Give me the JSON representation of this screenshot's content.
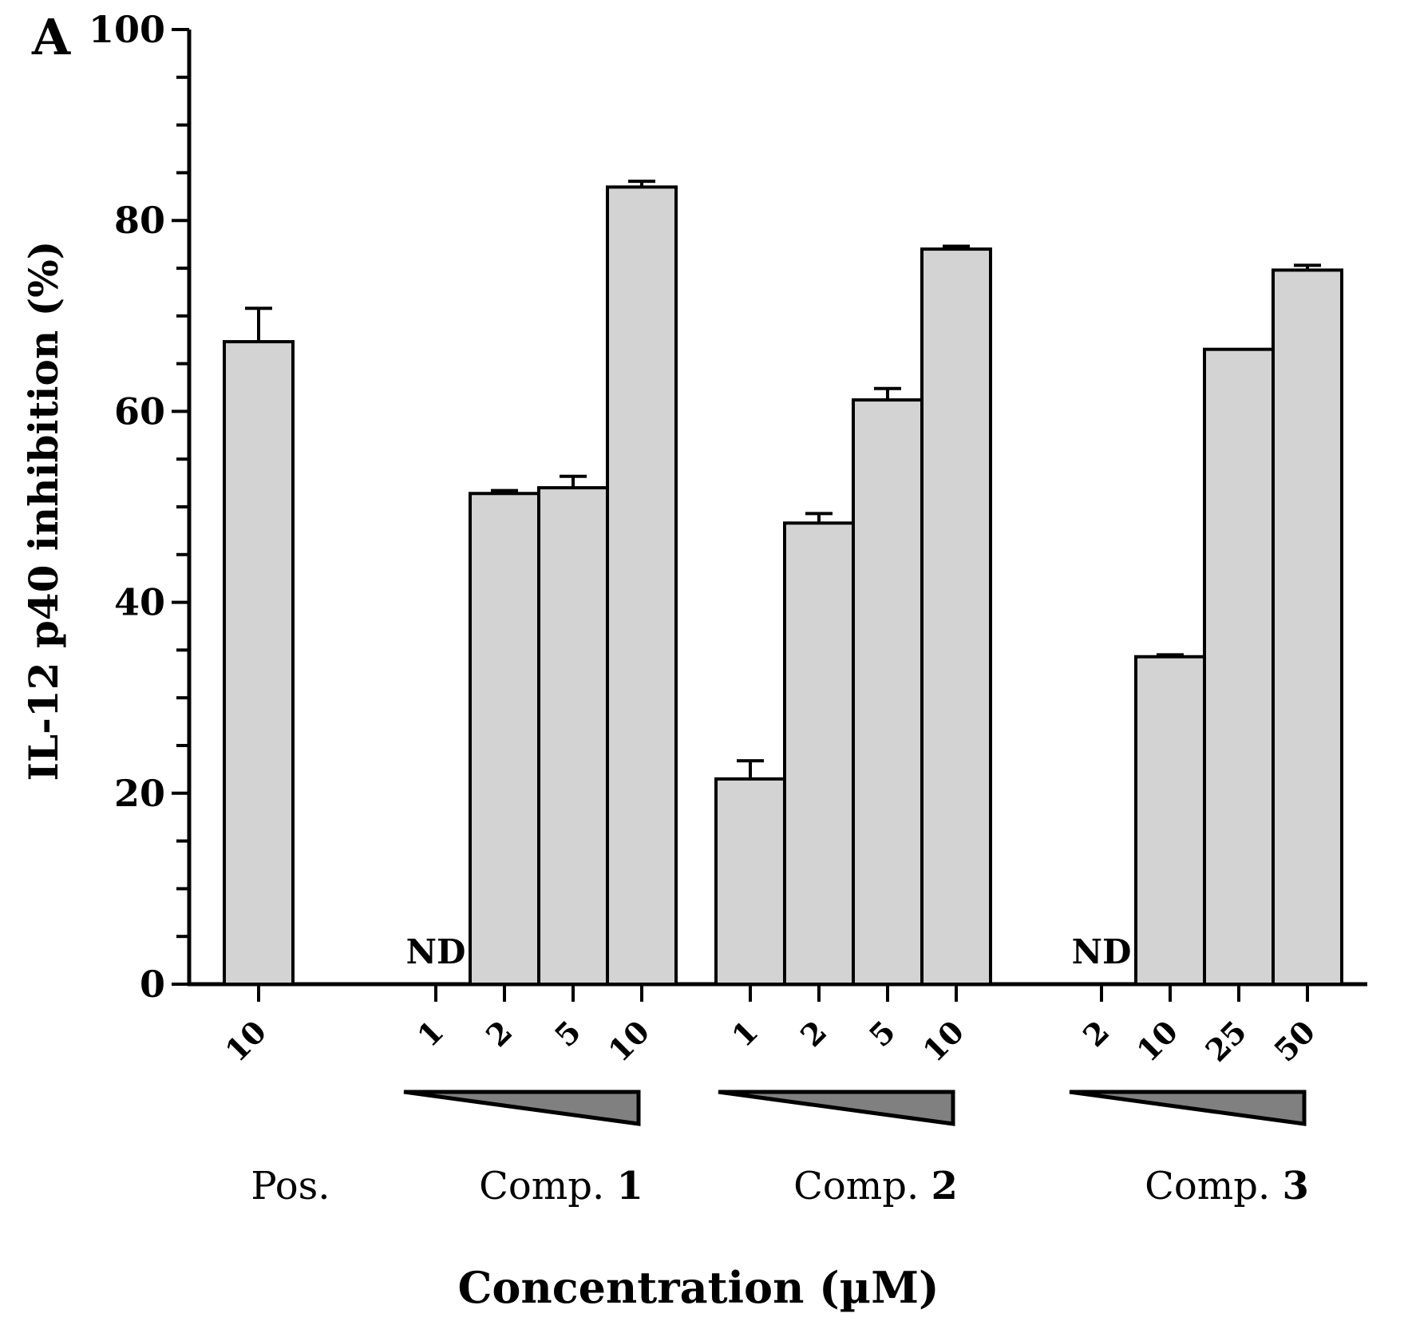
{
  "panel_label": "A",
  "chart_data": {
    "type": "bar",
    "title": "",
    "ylabel": "IL-12 p40 inhibition (%)",
    "xlabel": "Concentration (µM)",
    "ylim": [
      0,
      100
    ],
    "yticks": [
      0,
      20,
      40,
      60,
      80,
      100
    ],
    "ytick_labels": [
      "0",
      "20",
      "40",
      "60",
      "80",
      "100"
    ],
    "bar_color": "#d3d3d3",
    "gradient_color": "#808080",
    "not_detected_label": "ND",
    "groups": [
      {
        "label": "Pos.",
        "label_bold_part": "",
        "show_gradient": false,
        "bars": [
          {
            "concentration": "10",
            "value": 67.3,
            "error": 3.5
          }
        ]
      },
      {
        "label": "Comp. ",
        "label_bold_part": "1",
        "show_gradient": true,
        "bars": [
          {
            "concentration": "1",
            "value": null,
            "error": null,
            "note": "ND"
          },
          {
            "concentration": "2",
            "value": 51.4,
            "error": 0.3
          },
          {
            "concentration": "5",
            "value": 52.0,
            "error": 1.2
          },
          {
            "concentration": "10",
            "value": 83.5,
            "error": 0.6
          }
        ]
      },
      {
        "label": "Comp. ",
        "label_bold_part": "2",
        "show_gradient": true,
        "bars": [
          {
            "concentration": "1",
            "value": 21.5,
            "error": 1.9
          },
          {
            "concentration": "2",
            "value": 48.3,
            "error": 1.0
          },
          {
            "concentration": "5",
            "value": 61.2,
            "error": 1.2
          },
          {
            "concentration": "10",
            "value": 77.0,
            "error": 0.3
          }
        ]
      },
      {
        "label": "Comp. ",
        "label_bold_part": "3",
        "show_gradient": true,
        "bars": [
          {
            "concentration": "2",
            "value": null,
            "error": null,
            "note": "ND"
          },
          {
            "concentration": "10",
            "value": 34.3,
            "error": 0.2
          },
          {
            "concentration": "25",
            "value": 66.5,
            "error": 0.0
          },
          {
            "concentration": "50",
            "value": 74.8,
            "error": 0.5
          }
        ]
      }
    ]
  }
}
